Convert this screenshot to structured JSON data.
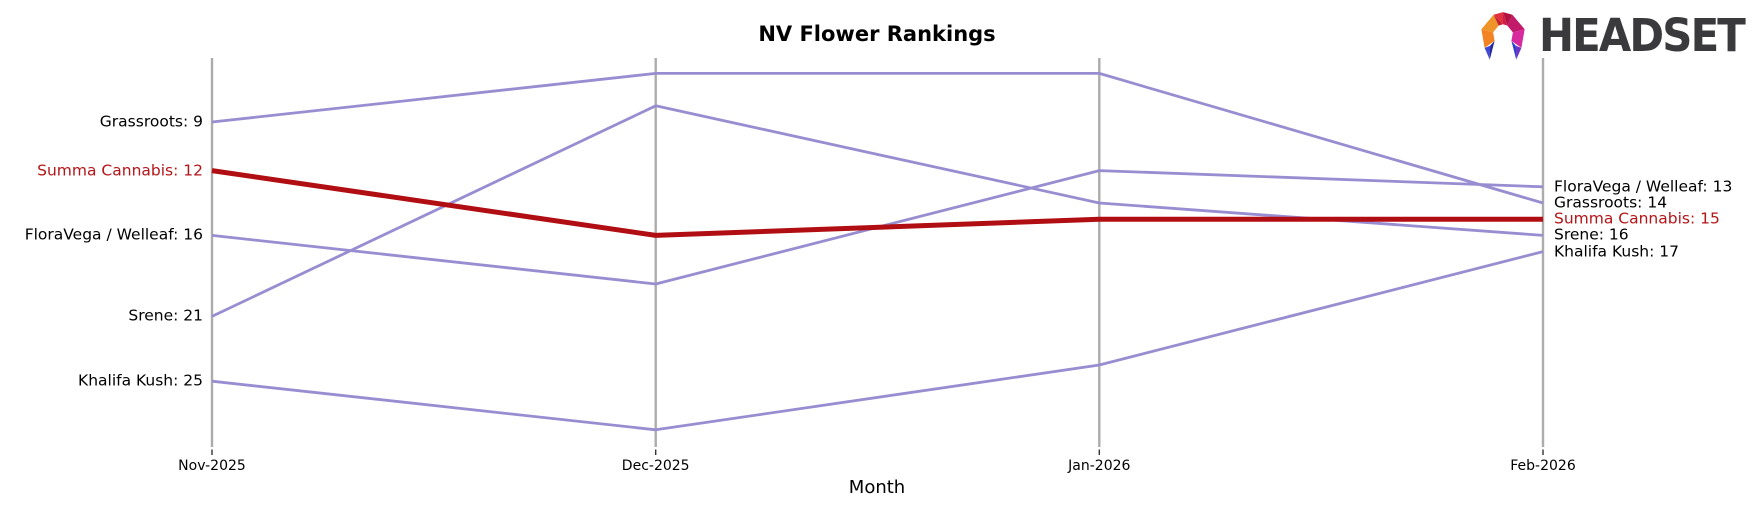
{
  "logo": {
    "text": "HEADSET",
    "text_color": "#3a393b",
    "palette": [
      "#f28322",
      "#ee9429",
      "#e0333f",
      "#c32030",
      "#b2123f",
      "#d01a48",
      "#c2196b",
      "#d62a9e",
      "#4047d2",
      "#20289a",
      "#6d34c8",
      "#2c41cf"
    ]
  },
  "chart_data": {
    "type": "line",
    "variant": "bump_rank_chart",
    "title": "NV Flower Rankings",
    "xlabel": "Month",
    "x": [
      "Nov-2025",
      "Dec-2025",
      "Jan-2026",
      "Feb-2026"
    ],
    "y_axis": {
      "metric": "rank",
      "inverted": true,
      "top_rank_visible": 5,
      "bottom_rank_visible": 29,
      "gridlines": "vertical-only",
      "y_tick_labels": "none"
    },
    "legend": "none",
    "series": [
      {
        "name": "Grassroots",
        "values": [
          9,
          6,
          6,
          14
        ],
        "highlight": false,
        "left_label": "Grassroots: 9",
        "right_label": "Grassroots: 14"
      },
      {
        "name": "FloraVega / Welleaf",
        "values": [
          16,
          19,
          12,
          13
        ],
        "highlight": false,
        "left_label": "FloraVega / Welleaf: 16",
        "right_label": "FloraVega / Welleaf: 13"
      },
      {
        "name": "Srene",
        "values": [
          21,
          8,
          14,
          16
        ],
        "highlight": false,
        "left_label": "Srene: 21",
        "right_label": "Srene: 16"
      },
      {
        "name": "Khalifa Kush",
        "values": [
          25,
          28,
          24,
          17
        ],
        "highlight": false,
        "left_label": "Khalifa Kush: 25",
        "right_label": "Khalifa Kush: 17"
      },
      {
        "name": "Summa Cannabis",
        "values": [
          12,
          16,
          15,
          15
        ],
        "highlight": true,
        "left_label": "Summa Cannabis: 12",
        "right_label": "Summa Cannabis: 15"
      }
    ],
    "colors": {
      "series_default": "#998dd1",
      "series_highlight": "#b00e12",
      "highlight_label_text": "#b51418",
      "gridline": "#acacac",
      "tick": "#333333",
      "text": "#000000",
      "background": "#ffffff"
    }
  }
}
